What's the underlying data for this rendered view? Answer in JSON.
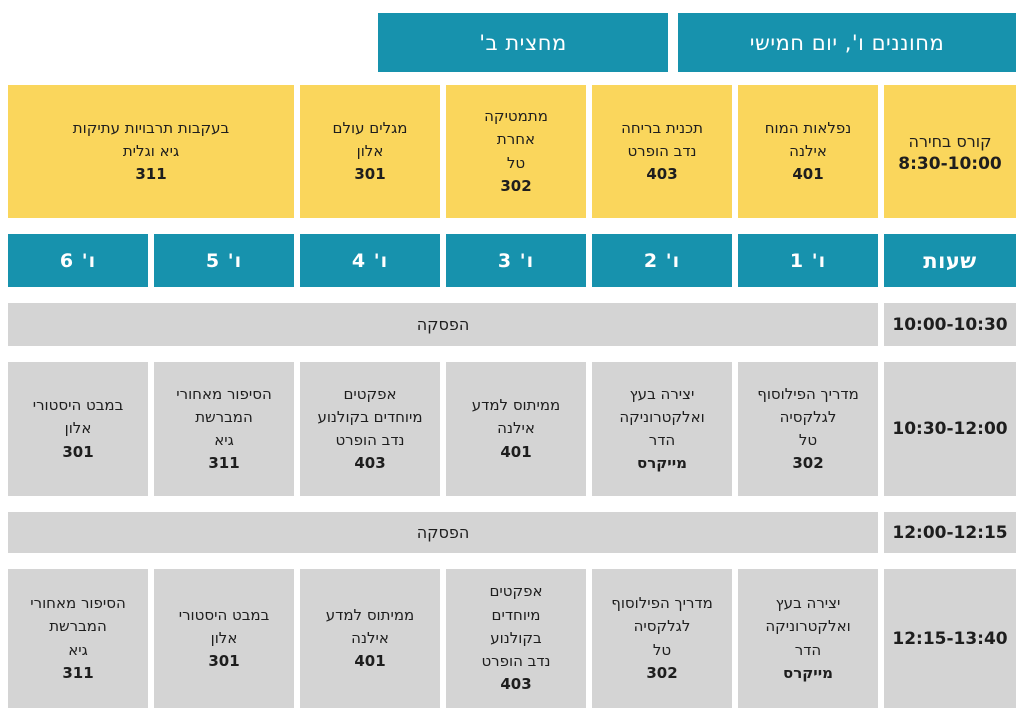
{
  "banners": {
    "day": "מחוננים ו', יום חמישי",
    "semester": "מחצית ב'"
  },
  "elective": {
    "header_title": "קורס בחירה",
    "header_time": "8:30-10:00",
    "courses": [
      {
        "text": "נפלאות המוח\nאילנה",
        "room": "401"
      },
      {
        "text": "תכנית בריחה\nנדב הופרט",
        "room": "403"
      },
      {
        "text": "מתמטיקה\nאחרת\nטל",
        "room": "302"
      },
      {
        "text": "מגלים עולם\nאלון",
        "room": "301"
      },
      {
        "text": "בעקבות תרבויות עתיקות\nגיא וגלית",
        "room": "311"
      }
    ]
  },
  "headers": {
    "hours": "שעות",
    "days": [
      "ו' 1",
      "ו' 2",
      "ו' 3",
      "ו' 4",
      "ו' 5",
      "ו' 6"
    ]
  },
  "rows": [
    {
      "type": "break",
      "time": "10:00-10:30",
      "label": "הפסקה"
    },
    {
      "type": "classes",
      "time": "10:30-12:00",
      "cells": [
        {
          "text": "מדריך הפילוסוף\nלגלקסיה\nטל",
          "room": "302"
        },
        {
          "text": "יצירה בעץ\nואלקטרוניקה\nהדר",
          "room": "מייקרס"
        },
        {
          "text": "ממיתוס למדע\nאילנה",
          "room": "401"
        },
        {
          "text": "אפקטים\nמיוחדים בקולנוע\nנדב הופרט",
          "room": "403"
        },
        {
          "text": "הסיפור מאחורי\nהמברשת\nגיא",
          "room": "311"
        },
        {
          "text": "במבט היסטורי\nאלון",
          "room": "301"
        }
      ]
    },
    {
      "type": "break",
      "time": "12:00-12:15",
      "label": "הפסקה"
    },
    {
      "type": "classes",
      "time": "12:15-13:40",
      "cells": [
        {
          "text": "יצירה בעץ\nואלקטרוניקה\nהדר",
          "room": "מייקרס"
        },
        {
          "text": "מדריך הפילוסוף\nלגלקסיה\nטל",
          "room": "302"
        },
        {
          "text": "אפקטים\nמיוחדים\nבקולנוע\nנדב הופרט",
          "room": "403"
        },
        {
          "text": "ממיתוס למדע\nאילנה",
          "room": "401"
        },
        {
          "text": "במבט היסטורי\nאלון",
          "room": "301"
        },
        {
          "text": "הסיפור מאחורי\nהמברשת\nגיא",
          "room": "311"
        }
      ]
    }
  ],
  "colors": {
    "teal": "#1792ad",
    "yellow": "#fad65c",
    "gray": "#d4d4d4",
    "text_dark": "#1e1e1e"
  }
}
